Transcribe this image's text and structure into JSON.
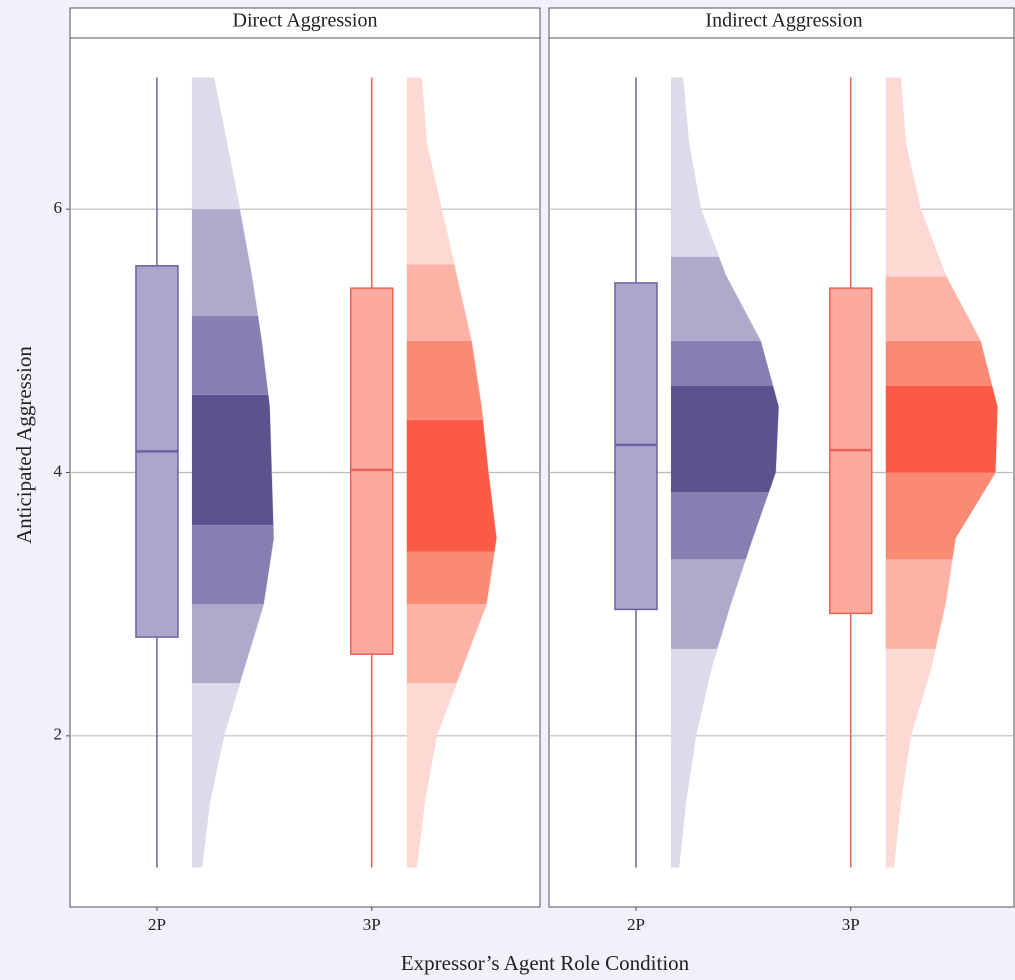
{
  "chart_data": [
    {
      "type": "raincloud",
      "title": "Direct Aggression",
      "categories": [
        "2P",
        "3P"
      ],
      "ylim": [
        0.7,
        7.3
      ],
      "yticks": [
        2,
        4,
        6
      ],
      "grid": true,
      "density_y": [
        1,
        1.5,
        2,
        2.5,
        3,
        3.5,
        4,
        4.5,
        5,
        5.5,
        6,
        6.5,
        7
      ],
      "boxes": [
        {
          "min": 1,
          "q1": 2.75,
          "median": 4.16,
          "q3": 5.57,
          "max": 7,
          "color": "#aaa6cc",
          "edge": "#6a63a0"
        },
        {
          "min": 1,
          "q1": 2.62,
          "median": 4.02,
          "q3": 5.4,
          "max": 7,
          "color": "#fca99f",
          "edge": "#e86454"
        }
      ],
      "densities": [
        {
          "values": [
            10,
            18,
            32,
            52,
            72,
            82,
            80,
            78,
            70,
            60,
            48,
            35,
            22
          ],
          "band_edges": [
            1,
            2.4,
            3.0,
            3.6,
            4.59,
            5.19,
            6,
            7
          ],
          "band_colors": [
            "#dcdbea",
            "#aeaacc",
            "#8680b2",
            "#5c528e",
            "#8680b2",
            "#aeaacc",
            "#dcdbea"
          ]
        },
        {
          "values": [
            10,
            18,
            30,
            55,
            80,
            90,
            82,
            75,
            65,
            50,
            35,
            20,
            15
          ],
          "band_edges": [
            1,
            2.4,
            3.0,
            3.4,
            4.4,
            5.0,
            5.58,
            7
          ],
          "band_colors": [
            "#fdd9d3",
            "#fcb3a5",
            "#fb8a74",
            "#fb5a47",
            "#fb8a74",
            "#fcb3a5",
            "#fdd9d3"
          ]
        }
      ]
    },
    {
      "type": "raincloud",
      "title": "Indirect Aggression",
      "categories": [
        "2P",
        "3P"
      ],
      "ylim": [
        0.7,
        7.3
      ],
      "yticks": [
        2,
        4,
        6
      ],
      "grid": true,
      "density_y": [
        1,
        1.5,
        2,
        2.5,
        3,
        3.5,
        4,
        4.5,
        5,
        5.5,
        6,
        6.5,
        7
      ],
      "boxes": [
        {
          "min": 1,
          "q1": 2.96,
          "median": 4.21,
          "q3": 5.44,
          "max": 7,
          "color": "#aaa6cc",
          "edge": "#6a63a0"
        },
        {
          "min": 1,
          "q1": 2.93,
          "median": 4.17,
          "q3": 5.4,
          "max": 7,
          "color": "#fca99f",
          "edge": "#e86454"
        }
      ],
      "densities": [
        {
          "values": [
            8,
            15,
            25,
            40,
            60,
            82,
            105,
            108,
            90,
            55,
            30,
            18,
            12
          ],
          "band_edges": [
            1,
            2.66,
            3.34,
            3.85,
            4.66,
            5.0,
            5.64,
            7
          ],
          "band_colors": [
            "#dcdbea",
            "#aeaacc",
            "#8680b2",
            "#5c528e",
            "#8680b2",
            "#aeaacc",
            "#dcdbea"
          ]
        },
        {
          "values": [
            8,
            15,
            25,
            45,
            60,
            70,
            110,
            112,
            95,
            60,
            35,
            20,
            15
          ],
          "band_edges": [
            1,
            2.66,
            3.34,
            4.0,
            4.66,
            5.0,
            5.49,
            7
          ],
          "band_colors": [
            "#fdd9d3",
            "#fcb3a5",
            "#fb8a74",
            "#fb5a47",
            "#fb8a74",
            "#fcb3a5",
            "#fdd9d3"
          ]
        }
      ]
    }
  ],
  "y_label": "Anticipated Aggression",
  "x_label": "Expressor’s Agent Role Condition"
}
